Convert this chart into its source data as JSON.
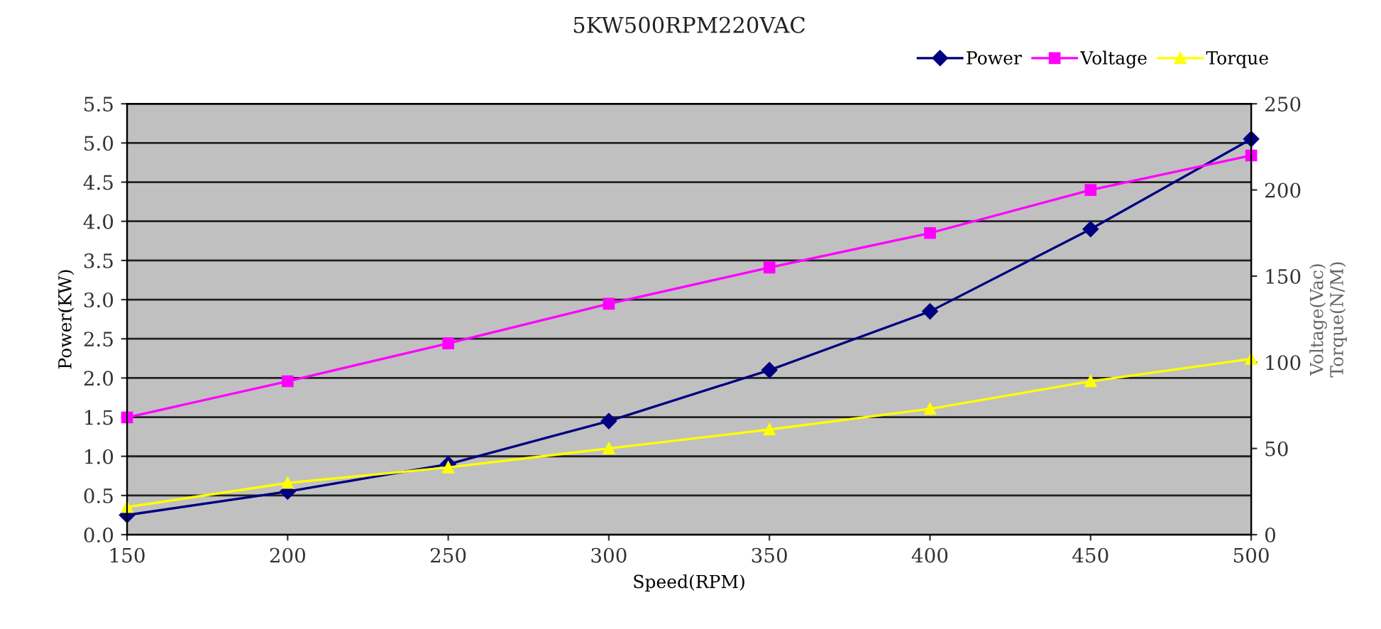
{
  "chart_data": {
    "type": "line",
    "title": "5KW500RPM220VAC",
    "xlabel": "Speed(RPM)",
    "ylabel": "Power(KW)",
    "y2label": "Voltage(Vac)\nTorque(N/M)",
    "x": [
      150,
      200,
      250,
      300,
      350,
      400,
      450,
      500
    ],
    "series": [
      {
        "name": "Power",
        "color": "#000080",
        "marker": "diamond",
        "values": [
          0.25,
          0.55,
          0.9,
          1.45,
          2.1,
          2.85,
          3.9,
          5.05
        ]
      },
      {
        "name": "Voltage",
        "color": "#ff00ff",
        "marker": "square",
        "axis": "y2",
        "values": [
          68,
          89,
          111,
          134,
          155,
          175,
          200,
          220
        ]
      },
      {
        "name": "Torque",
        "color": "#ffff00",
        "marker": "triangle",
        "axis": "y2",
        "values": [
          16,
          30,
          39,
          50,
          61,
          73,
          89,
          102
        ]
      }
    ],
    "xlim": [
      150,
      500
    ],
    "xticks": [
      150,
      200,
      250,
      300,
      350,
      400,
      450,
      500
    ],
    "ylim": [
      0,
      5.5
    ],
    "yticks": [
      {
        "value": 0,
        "label": "0.0"
      },
      {
        "value": 0.5,
        "label": "0.5"
      },
      {
        "value": 1,
        "label": "1.0"
      },
      {
        "value": 1.5,
        "label": "1.5"
      },
      {
        "value": 2,
        "label": "2.0"
      },
      {
        "value": 2.5,
        "label": "2.5"
      },
      {
        "value": 3,
        "label": "3.0"
      },
      {
        "value": 3.5,
        "label": "3.5"
      },
      {
        "value": 4,
        "label": "4.0"
      },
      {
        "value": 4.5,
        "label": "4.5"
      },
      {
        "value": 5,
        "label": "5.0"
      },
      {
        "value": 5.5,
        "label": "5.5"
      }
    ],
    "y2lim": [
      0,
      250
    ],
    "y2ticks": [
      0,
      50,
      100,
      150,
      200,
      250
    ],
    "grid": "y",
    "legend": "top right",
    "line_style": "solid"
  }
}
